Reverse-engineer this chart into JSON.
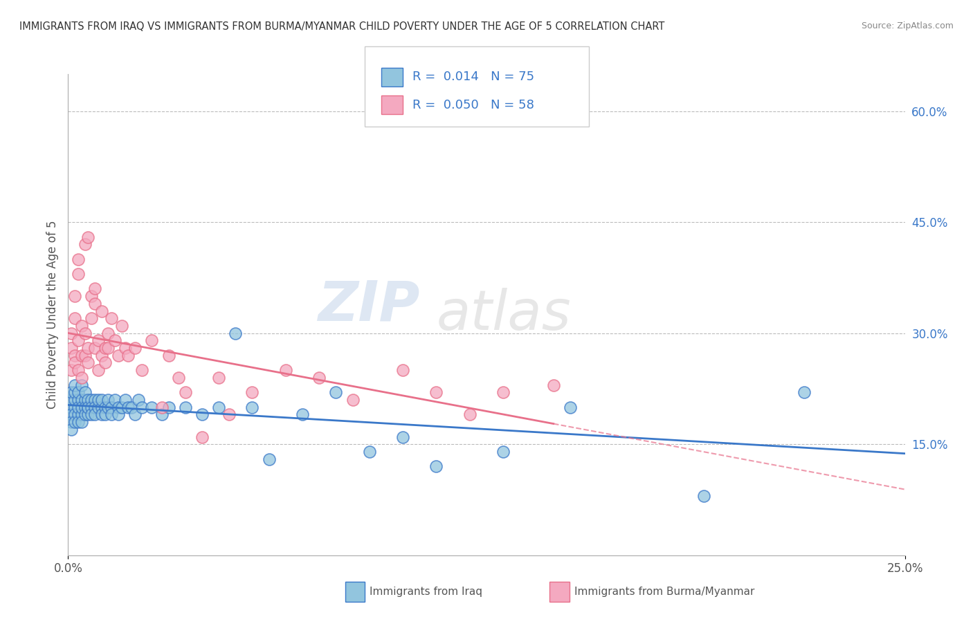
{
  "title": "IMMIGRANTS FROM IRAQ VS IMMIGRANTS FROM BURMA/MYANMAR CHILD POVERTY UNDER THE AGE OF 5 CORRELATION CHART",
  "source": "Source: ZipAtlas.com",
  "ylabel": "Child Poverty Under the Age of 5",
  "watermark_zip": "ZIP",
  "watermark_atlas": "atlas",
  "xlim": [
    0.0,
    0.25
  ],
  "ylim": [
    0.0,
    0.65
  ],
  "x_tick_vals": [
    0.0,
    0.25
  ],
  "x_tick_labels": [
    "0.0%",
    "25.0%"
  ],
  "y_ticks_right": [
    0.15,
    0.3,
    0.45,
    0.6
  ],
  "y_tick_labels_right": [
    "15.0%",
    "30.0%",
    "45.0%",
    "60.0%"
  ],
  "legend_iraq_r": "0.014",
  "legend_iraq_n": "75",
  "legend_burma_r": "0.050",
  "legend_burma_n": "58",
  "iraq_color": "#92C5DE",
  "burma_color": "#F4A9C0",
  "iraq_line_color": "#3A78C9",
  "burma_line_color": "#E8708A",
  "background_color": "#FFFFFF",
  "grid_color": "#BBBBBB",
  "title_color": "#333333",
  "legend_text_color": "#3A78C9",
  "iraq_scatter_x": [
    0.001,
    0.001,
    0.001,
    0.001,
    0.001,
    0.001,
    0.002,
    0.002,
    0.002,
    0.002,
    0.002,
    0.002,
    0.003,
    0.003,
    0.003,
    0.003,
    0.003,
    0.004,
    0.004,
    0.004,
    0.004,
    0.004,
    0.005,
    0.005,
    0.005,
    0.005,
    0.006,
    0.006,
    0.006,
    0.006,
    0.007,
    0.007,
    0.007,
    0.008,
    0.008,
    0.008,
    0.009,
    0.009,
    0.01,
    0.01,
    0.01,
    0.011,
    0.011,
    0.012,
    0.012,
    0.013,
    0.013,
    0.014,
    0.015,
    0.015,
    0.016,
    0.017,
    0.018,
    0.019,
    0.02,
    0.021,
    0.022,
    0.025,
    0.028,
    0.03,
    0.035,
    0.04,
    0.045,
    0.05,
    0.055,
    0.06,
    0.07,
    0.08,
    0.09,
    0.1,
    0.11,
    0.13,
    0.15,
    0.19,
    0.22
  ],
  "iraq_scatter_y": [
    0.2,
    0.19,
    0.21,
    0.18,
    0.22,
    0.17,
    0.2,
    0.19,
    0.21,
    0.18,
    0.22,
    0.23,
    0.19,
    0.21,
    0.2,
    0.18,
    0.22,
    0.21,
    0.19,
    0.2,
    0.23,
    0.18,
    0.21,
    0.2,
    0.19,
    0.22,
    0.2,
    0.21,
    0.19,
    0.2,
    0.21,
    0.2,
    0.19,
    0.21,
    0.2,
    0.19,
    0.2,
    0.21,
    0.2,
    0.19,
    0.21,
    0.2,
    0.19,
    0.2,
    0.21,
    0.2,
    0.19,
    0.21,
    0.2,
    0.19,
    0.2,
    0.21,
    0.2,
    0.2,
    0.19,
    0.21,
    0.2,
    0.2,
    0.19,
    0.2,
    0.2,
    0.19,
    0.2,
    0.3,
    0.2,
    0.13,
    0.19,
    0.22,
    0.14,
    0.16,
    0.12,
    0.14,
    0.2,
    0.08,
    0.22
  ],
  "burma_scatter_x": [
    0.001,
    0.001,
    0.001,
    0.002,
    0.002,
    0.002,
    0.002,
    0.003,
    0.003,
    0.003,
    0.003,
    0.004,
    0.004,
    0.004,
    0.005,
    0.005,
    0.005,
    0.006,
    0.006,
    0.006,
    0.007,
    0.007,
    0.008,
    0.008,
    0.008,
    0.009,
    0.009,
    0.01,
    0.01,
    0.011,
    0.011,
    0.012,
    0.012,
    0.013,
    0.014,
    0.015,
    0.016,
    0.017,
    0.018,
    0.02,
    0.022,
    0.025,
    0.028,
    0.03,
    0.033,
    0.035,
    0.04,
    0.045,
    0.048,
    0.055,
    0.065,
    0.075,
    0.085,
    0.1,
    0.11,
    0.12,
    0.13,
    0.145
  ],
  "burma_scatter_y": [
    0.28,
    0.3,
    0.25,
    0.27,
    0.32,
    0.35,
    0.26,
    0.29,
    0.38,
    0.25,
    0.4,
    0.27,
    0.31,
    0.24,
    0.3,
    0.42,
    0.27,
    0.43,
    0.28,
    0.26,
    0.35,
    0.32,
    0.34,
    0.28,
    0.36,
    0.29,
    0.25,
    0.27,
    0.33,
    0.28,
    0.26,
    0.3,
    0.28,
    0.32,
    0.29,
    0.27,
    0.31,
    0.28,
    0.27,
    0.28,
    0.25,
    0.29,
    0.2,
    0.27,
    0.24,
    0.22,
    0.16,
    0.24,
    0.19,
    0.22,
    0.25,
    0.24,
    0.21,
    0.25,
    0.22,
    0.19,
    0.22,
    0.23
  ]
}
